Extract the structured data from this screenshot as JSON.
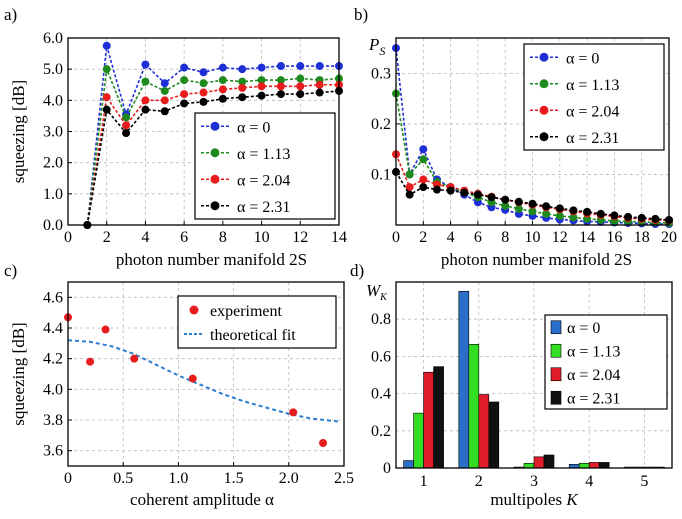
{
  "panels": {
    "a": "a)",
    "b": "b)",
    "c": "c)",
    "d": "d)"
  },
  "chart_data": [
    {
      "type": "line",
      "panel": "a",
      "xlabel": "photon number manifold 2S",
      "ylabel": "squeezing [dB]",
      "xlim": [
        0,
        14
      ],
      "ylim": [
        0.0,
        6.0
      ],
      "xticks": [
        0,
        2,
        4,
        6,
        8,
        10,
        12,
        14
      ],
      "yticks": [
        "0.0",
        "1.0",
        "2.0",
        "3.0",
        "4.0",
        "5.0",
        "6.0"
      ],
      "grid": true,
      "legend_position": "bottom-right",
      "x": [
        1,
        2,
        3,
        4,
        5,
        6,
        7,
        8,
        9,
        10,
        11,
        12,
        13,
        14
      ],
      "series": [
        {
          "name": "α = 0",
          "color": "#1f2fd6",
          "values": [
            0.0,
            5.75,
            3.55,
            5.15,
            4.55,
            5.05,
            4.9,
            5.05,
            5.0,
            5.05,
            5.1,
            5.1,
            5.1,
            5.1
          ]
        },
        {
          "name": "α = 1.13",
          "color": "#1e8a1e",
          "values": [
            0.0,
            5.0,
            3.45,
            4.6,
            4.3,
            4.65,
            4.55,
            4.65,
            4.6,
            4.65,
            4.65,
            4.7,
            4.65,
            4.7
          ]
        },
        {
          "name": "α = 2.04",
          "color": "#e81c1c",
          "values": [
            0.0,
            4.1,
            3.2,
            4.0,
            4.0,
            4.2,
            4.25,
            4.35,
            4.4,
            4.45,
            4.45,
            4.45,
            4.5,
            4.5
          ]
        },
        {
          "name": "α = 2.31",
          "color": "#000000",
          "values": [
            0.0,
            3.7,
            2.95,
            3.7,
            3.65,
            3.9,
            3.95,
            4.05,
            4.1,
            4.15,
            4.2,
            4.2,
            4.25,
            4.3
          ]
        }
      ]
    },
    {
      "type": "line",
      "panel": "b",
      "xlabel": "photon number manifold 2S",
      "ylabel": "P_S",
      "ylabel_main": "P",
      "ylabel_sub": "S",
      "xlim": [
        0,
        20
      ],
      "ylim": [
        0,
        0.37
      ],
      "xticks": [
        0,
        2,
        4,
        6,
        8,
        10,
        12,
        14,
        16,
        18,
        20
      ],
      "yticks": [
        "0.1",
        "0.2",
        "0.3"
      ],
      "grid": true,
      "legend_position": "top-right",
      "x": [
        0,
        1,
        2,
        3,
        4,
        5,
        6,
        7,
        8,
        9,
        10,
        11,
        12,
        13,
        14,
        15,
        16,
        17,
        18,
        19,
        20
      ],
      "series": [
        {
          "name": "α = 0",
          "color": "#1f2fd6",
          "values": [
            0.35,
            0.1,
            0.15,
            0.09,
            0.075,
            0.06,
            0.045,
            0.035,
            0.03,
            0.022,
            0.018,
            0.014,
            0.011,
            0.009,
            0.007,
            0.006,
            0.005,
            0.004,
            0.003,
            0.002,
            0.002
          ]
        },
        {
          "name": "α = 1.13",
          "color": "#1e8a1e",
          "values": [
            0.26,
            0.1,
            0.13,
            0.085,
            0.075,
            0.065,
            0.055,
            0.045,
            0.038,
            0.032,
            0.027,
            0.022,
            0.018,
            0.015,
            0.012,
            0.01,
            0.008,
            0.007,
            0.006,
            0.005,
            0.004
          ]
        },
        {
          "name": "α = 2.04",
          "color": "#e81c1c",
          "values": [
            0.14,
            0.075,
            0.09,
            0.08,
            0.075,
            0.068,
            0.062,
            0.056,
            0.05,
            0.045,
            0.04,
            0.035,
            0.031,
            0.027,
            0.023,
            0.02,
            0.017,
            0.014,
            0.012,
            0.01,
            0.009
          ]
        },
        {
          "name": "α = 2.31",
          "color": "#000000",
          "values": [
            0.105,
            0.06,
            0.075,
            0.07,
            0.068,
            0.064,
            0.06,
            0.055,
            0.05,
            0.046,
            0.042,
            0.037,
            0.033,
            0.029,
            0.026,
            0.022,
            0.019,
            0.016,
            0.014,
            0.012,
            0.01
          ]
        }
      ]
    },
    {
      "type": "scatter",
      "panel": "c",
      "xlabel": "coherent amplitude α",
      "ylabel": "squeezing [dB]",
      "xlim": [
        0,
        2.5
      ],
      "ylim": [
        3.5,
        4.7
      ],
      "xticks": [
        "0",
        "0.5",
        "1.0",
        "1.5",
        "2.0",
        "2.5"
      ],
      "yticks": [
        "3.6",
        "3.8",
        "4.0",
        "4.2",
        "4.4",
        "4.6"
      ],
      "grid": true,
      "legend_position": "top-right",
      "series": [
        {
          "name": "experiment",
          "color": "#e81c1c",
          "x": [
            0.0,
            0.2,
            0.34,
            0.6,
            1.13,
            2.04,
            2.31
          ],
          "values": [
            4.47,
            4.18,
            4.39,
            4.2,
            4.07,
            3.85,
            3.65
          ]
        },
        {
          "name": "theoretical fit",
          "color": "#2a7fd0",
          "x": [
            0.0,
            0.2,
            0.4,
            0.6,
            0.8,
            1.0,
            1.2,
            1.4,
            1.6,
            1.8,
            2.0,
            2.2,
            2.45
          ],
          "values": [
            4.32,
            4.31,
            4.28,
            4.23,
            4.16,
            4.09,
            4.03,
            3.97,
            3.92,
            3.88,
            3.84,
            3.81,
            3.79
          ]
        }
      ]
    },
    {
      "type": "bar",
      "panel": "d",
      "xlabel": "multipoles K",
      "ylabel": "W_K",
      "ylabel_main": "W",
      "ylabel_sub": "K",
      "categories": [
        "1",
        "2",
        "3",
        "4",
        "5"
      ],
      "ylim": [
        0,
        1.0
      ],
      "yticks": [
        "0",
        "0.2",
        "0.4",
        "0.6",
        "0.8"
      ],
      "grid": true,
      "legend_position": "right",
      "series": [
        {
          "name": "α = 0",
          "color": "#2a6ec8",
          "values": [
            0.04,
            0.95,
            0.005,
            0.02,
            0.005
          ]
        },
        {
          "name": "α = 1.13",
          "color": "#33dd22",
          "values": [
            0.295,
            0.665,
            0.025,
            0.025,
            0.005
          ]
        },
        {
          "name": "α = 2.04",
          "color": "#e01c2a",
          "values": [
            0.515,
            0.395,
            0.06,
            0.03,
            0.005
          ]
        },
        {
          "name": "α = 2.31",
          "color": "#111111",
          "values": [
            0.545,
            0.355,
            0.07,
            0.03,
            0.005
          ]
        }
      ]
    }
  ]
}
